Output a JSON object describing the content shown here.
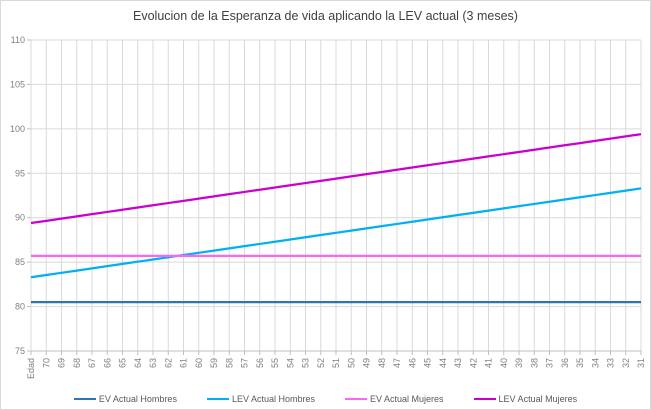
{
  "chart_data": {
    "type": "line",
    "title": "Evolucion de la Esperanza de vida aplicando la LEV actual (3 meses)",
    "x_axis_first_label": "Edad",
    "categories": [
      "Edad",
      "70",
      "69",
      "68",
      "67",
      "66",
      "65",
      "64",
      "63",
      "62",
      "61",
      "60",
      "59",
      "58",
      "57",
      "56",
      "55",
      "54",
      "53",
      "52",
      "51",
      "50",
      "49",
      "48",
      "47",
      "46",
      "45",
      "44",
      "43",
      "42",
      "41",
      "40",
      "39",
      "38",
      "37",
      "36",
      "35",
      "34",
      "33",
      "32",
      "31"
    ],
    "y_ticks": [
      75,
      80,
      85,
      90,
      95,
      100,
      105,
      110
    ],
    "ylim": [
      75,
      110
    ],
    "grid": true,
    "legend_position": "bottom",
    "series": [
      {
        "name": "EV Actual Hombres",
        "color": "#2E75B6",
        "values": [
          80.5,
          80.5,
          80.5,
          80.5,
          80.5,
          80.5,
          80.5,
          80.5,
          80.5,
          80.5,
          80.5,
          80.5,
          80.5,
          80.5,
          80.5,
          80.5,
          80.5,
          80.5,
          80.5,
          80.5,
          80.5,
          80.5,
          80.5,
          80.5,
          80.5,
          80.5,
          80.5,
          80.5,
          80.5,
          80.5,
          80.5,
          80.5,
          80.5,
          80.5,
          80.5,
          80.5,
          80.5,
          80.5,
          80.5,
          80.5,
          80.5
        ]
      },
      {
        "name": "LEV Actual Hombres",
        "color": "#00B0F0",
        "values": [
          83.3,
          83.55,
          83.8,
          84.05,
          84.3,
          84.55,
          84.8,
          85.05,
          85.3,
          85.55,
          85.8,
          86.05,
          86.3,
          86.55,
          86.8,
          87.05,
          87.3,
          87.55,
          87.8,
          88.05,
          88.3,
          88.55,
          88.8,
          89.05,
          89.3,
          89.55,
          89.8,
          90.05,
          90.3,
          90.55,
          90.8,
          91.05,
          91.3,
          91.55,
          91.8,
          92.05,
          92.3,
          92.55,
          92.8,
          93.05,
          93.3
        ]
      },
      {
        "name": "EV Actual Mujeres",
        "color": "#FF66F0",
        "values": [
          85.7,
          85.7,
          85.7,
          85.7,
          85.7,
          85.7,
          85.7,
          85.7,
          85.7,
          85.7,
          85.7,
          85.7,
          85.7,
          85.7,
          85.7,
          85.7,
          85.7,
          85.7,
          85.7,
          85.7,
          85.7,
          85.7,
          85.7,
          85.7,
          85.7,
          85.7,
          85.7,
          85.7,
          85.7,
          85.7,
          85.7,
          85.7,
          85.7,
          85.7,
          85.7,
          85.7,
          85.7,
          85.7,
          85.7,
          85.7,
          85.7
        ]
      },
      {
        "name": "LEV Actual Mujeres",
        "color": "#CC00CC",
        "values": [
          89.4,
          89.65,
          89.9,
          90.15,
          90.4,
          90.65,
          90.9,
          91.15,
          91.4,
          91.65,
          91.9,
          92.15,
          92.4,
          92.65,
          92.9,
          93.15,
          93.4,
          93.65,
          93.9,
          94.15,
          94.4,
          94.65,
          94.9,
          95.15,
          95.4,
          95.65,
          95.9,
          96.15,
          96.4,
          96.65,
          96.9,
          97.15,
          97.4,
          97.65,
          97.9,
          98.15,
          98.4,
          98.65,
          98.9,
          99.15,
          99.4
        ]
      }
    ],
    "colors": {
      "grid": "#D9D9D9",
      "axis": "#BFBFBF",
      "tick_label": "#808080",
      "title": "#404040",
      "legend_text": "#595959"
    }
  }
}
